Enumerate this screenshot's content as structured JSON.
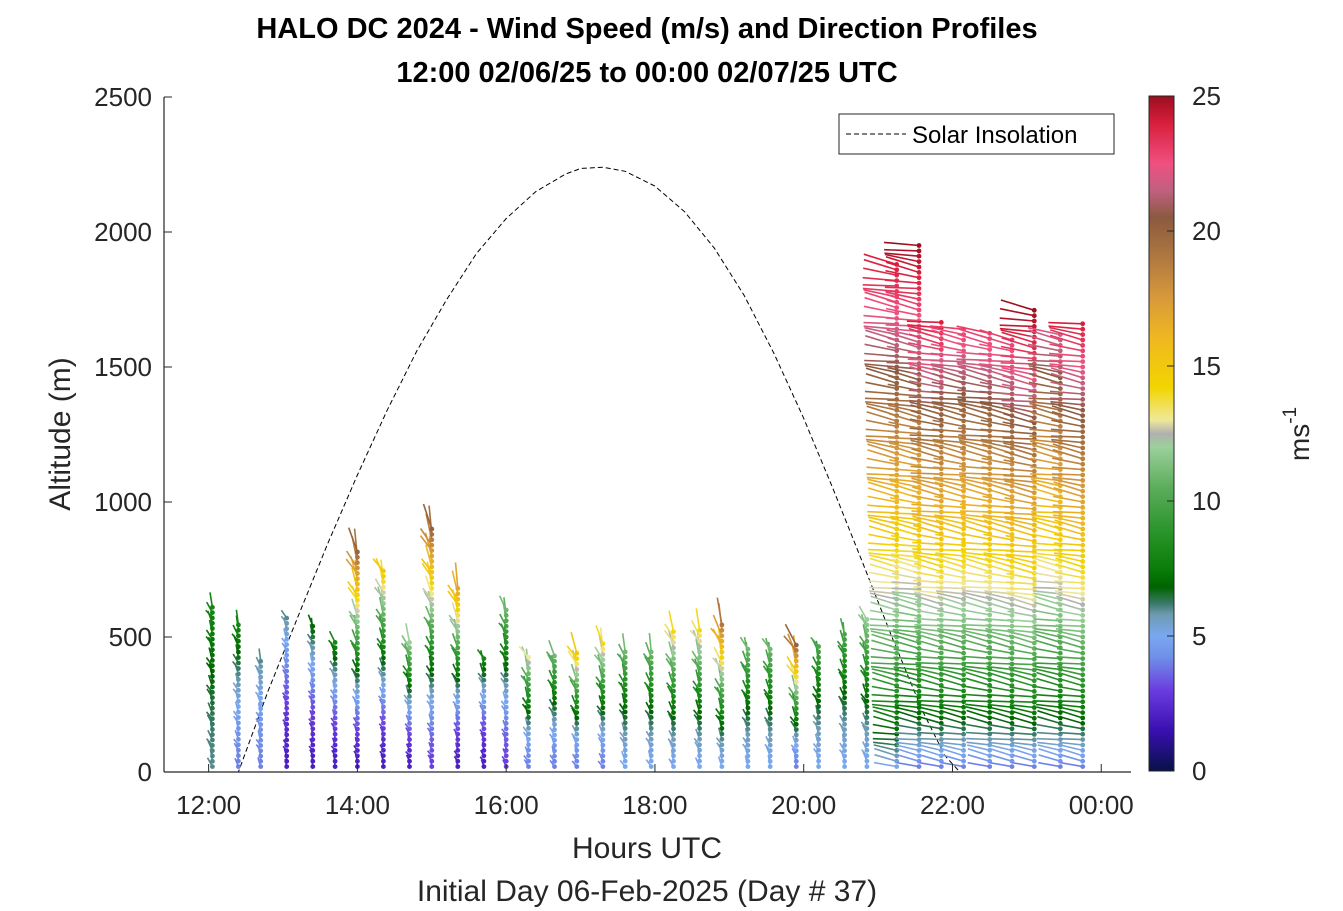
{
  "chart_data": {
    "type": "wind barb profile (time-altitude)",
    "title_line1": "HALO DC 2024 - Wind Speed (m/s) and Direction Profiles",
    "title_line2": "12:00 02/06/25 to 00:00 02/07/25  UTC",
    "xlabel": "Hours UTC",
    "xlabel2": "Initial Day 06-Feb-2025 (Day # 37)",
    "ylabel": "Altitude (m)",
    "xlim_hours": [
      11.4,
      24.4
    ],
    "ylim": [
      0,
      2500
    ],
    "xticks": [
      12,
      14,
      16,
      18,
      20,
      22,
      24
    ],
    "xtick_labels": [
      "12:00",
      "14:00",
      "16:00",
      "18:00",
      "20:00",
      "22:00",
      "00:00"
    ],
    "yticks": [
      0,
      500,
      1000,
      1500,
      2000,
      2500
    ],
    "ytick_labels": [
      "0",
      "500",
      "1000",
      "1500",
      "2000",
      "2500"
    ],
    "colorbar": {
      "label_base": "ms",
      "label_exp": "-1",
      "range": [
        0,
        25
      ],
      "ticks": [
        0,
        5,
        10,
        15,
        20,
        25
      ],
      "tick_labels": [
        "0",
        "5",
        "10",
        "15",
        "20",
        "25"
      ],
      "colormap": [
        [
          0,
          "#081048"
        ],
        [
          1.5,
          "#3a0fb0"
        ],
        [
          3,
          "#6a3de0"
        ],
        [
          4.2,
          "#6f8fe8"
        ],
        [
          5,
          "#7aa8f0"
        ],
        [
          5.8,
          "#6e9ab0"
        ],
        [
          6.2,
          "#3a7a6a"
        ],
        [
          6.8,
          "#006400"
        ],
        [
          7.5,
          "#0a7d0a"
        ],
        [
          9,
          "#2e962e"
        ],
        [
          10.5,
          "#5cad5c"
        ],
        [
          12,
          "#9bd09b"
        ],
        [
          12.5,
          "#b0b0b0"
        ],
        [
          13,
          "#f0e89a"
        ],
        [
          14.2,
          "#f2d500"
        ],
        [
          16,
          "#f0b820"
        ],
        [
          17.5,
          "#d89a3a"
        ],
        [
          19,
          "#b07840"
        ],
        [
          20.5,
          "#8a5a40"
        ],
        [
          21.5,
          "#c06080"
        ],
        [
          22.5,
          "#f05080"
        ],
        [
          24,
          "#d81e3c"
        ],
        [
          25,
          "#9c0e1e"
        ]
      ]
    },
    "legend": {
      "label": "Solar Insolation",
      "placement": "top-right"
    },
    "solar_insolation": {
      "x_hours": [
        11.4,
        12.2,
        12.4,
        12.8,
        13.2,
        13.6,
        14.0,
        14.4,
        14.8,
        15.2,
        15.6,
        16.0,
        16.4,
        16.8,
        17.0,
        17.3,
        17.6,
        18.0,
        18.4,
        18.8,
        19.2,
        19.6,
        20.0,
        20.4,
        20.8,
        21.2,
        21.6,
        21.9,
        22.1,
        22.3,
        24.4
      ],
      "y_m": [
        0,
        0,
        0,
        300,
        575,
        845,
        1100,
        1340,
        1560,
        1750,
        1920,
        2050,
        2150,
        2215,
        2235,
        2240,
        2225,
        2170,
        2075,
        1940,
        1765,
        1550,
        1310,
        1045,
        770,
        490,
        225,
        60,
        0,
        0,
        0
      ]
    },
    "profiles": [
      {
        "t": 12.05,
        "top": 610,
        "lo": 6,
        "hi": 8,
        "dir": 310,
        "kind": "low"
      },
      {
        "t": 12.4,
        "top": 545,
        "lo": 4,
        "hi": 8,
        "dir": 300,
        "kind": "low"
      },
      {
        "t": 12.7,
        "top": 410,
        "lo": 4,
        "hi": 6,
        "dir": 300,
        "kind": "low"
      },
      {
        "t": 13.05,
        "top": 570,
        "lo": 2,
        "hi": 6,
        "dir": 290,
        "kind": "low"
      },
      {
        "t": 13.4,
        "top": 540,
        "lo": 2,
        "hi": 7,
        "dir": 300,
        "kind": "low"
      },
      {
        "t": 13.7,
        "top": 480,
        "lo": 2,
        "hi": 8,
        "dir": 300,
        "kind": "low"
      },
      {
        "t": 14.0,
        "top": 815,
        "lo": 2,
        "hi": 20,
        "dir": 300,
        "kind": "low"
      },
      {
        "t": 14.35,
        "top": 745,
        "lo": 2,
        "hi": 15,
        "dir": 300,
        "kind": "low"
      },
      {
        "t": 14.7,
        "top": 480,
        "lo": 2,
        "hi": 12,
        "dir": 300,
        "kind": "low"
      },
      {
        "t": 15.0,
        "top": 900,
        "lo": 3,
        "hi": 20,
        "dir": 300,
        "kind": "low"
      },
      {
        "t": 15.35,
        "top": 680,
        "lo": 2,
        "hi": 17,
        "dir": 300,
        "kind": "low"
      },
      {
        "t": 15.7,
        "top": 420,
        "lo": 2,
        "hi": 8,
        "dir": 300,
        "kind": "low"
      },
      {
        "t": 16.0,
        "top": 600,
        "lo": 3,
        "hi": 11,
        "dir": 290,
        "kind": "low"
      },
      {
        "t": 16.3,
        "top": 425,
        "lo": 4,
        "hi": 13,
        "dir": 290,
        "kind": "low"
      },
      {
        "t": 16.65,
        "top": 430,
        "lo": 4,
        "hi": 11,
        "dir": 290,
        "kind": "low"
      },
      {
        "t": 16.95,
        "top": 440,
        "lo": 4,
        "hi": 15,
        "dir": 290,
        "kind": "low"
      },
      {
        "t": 17.3,
        "top": 475,
        "lo": 4,
        "hi": 14,
        "dir": 290,
        "kind": "low"
      },
      {
        "t": 17.6,
        "top": 445,
        "lo": 5,
        "hi": 11,
        "dir": 290,
        "kind": "low"
      },
      {
        "t": 17.95,
        "top": 445,
        "lo": 5,
        "hi": 11,
        "dir": 290,
        "kind": "low"
      },
      {
        "t": 18.25,
        "top": 520,
        "lo": 5,
        "hi": 14,
        "dir": 290,
        "kind": "low"
      },
      {
        "t": 18.6,
        "top": 525,
        "lo": 5,
        "hi": 14,
        "dir": 290,
        "kind": "low"
      },
      {
        "t": 18.9,
        "top": 545,
        "lo": 5,
        "hi": 19,
        "dir": 290,
        "kind": "low"
      },
      {
        "t": 19.25,
        "top": 455,
        "lo": 5,
        "hi": 11,
        "dir": 290,
        "kind": "low"
      },
      {
        "t": 19.55,
        "top": 455,
        "lo": 5,
        "hi": 11,
        "dir": 290,
        "kind": "low"
      },
      {
        "t": 19.9,
        "top": 470,
        "lo": 4,
        "hi": 20,
        "dir": 290,
        "kind": "low"
      },
      {
        "t": 20.2,
        "top": 465,
        "lo": 5,
        "hi": 10,
        "dir": 290,
        "kind": "low"
      },
      {
        "t": 20.55,
        "top": 510,
        "lo": 5,
        "hi": 10,
        "dir": 290,
        "kind": "low"
      },
      {
        "t": 20.85,
        "top": 565,
        "lo": 5,
        "hi": 12,
        "dir": 290,
        "kind": "low"
      },
      {
        "t": 21.25,
        "top": 1880,
        "lo": 5,
        "hi": 24,
        "dir": 285,
        "kind": "deep"
      },
      {
        "t": 21.55,
        "top": 1950,
        "lo": 4,
        "hi": 25,
        "dir": 285,
        "kind": "deep"
      },
      {
        "t": 21.85,
        "top": 1665,
        "lo": 4,
        "hi": 24,
        "dir": 285,
        "kind": "deep"
      },
      {
        "t": 22.15,
        "top": 1640,
        "lo": 4,
        "hi": 23,
        "dir": 285,
        "kind": "deep"
      },
      {
        "t": 22.5,
        "top": 1625,
        "lo": 4,
        "hi": 23,
        "dir": 285,
        "kind": "deep"
      },
      {
        "t": 22.8,
        "top": 1600,
        "lo": 4,
        "hi": 23,
        "dir": 285,
        "kind": "deep"
      },
      {
        "t": 23.1,
        "top": 1710,
        "lo": 4,
        "hi": 25,
        "dir": 285,
        "kind": "deep"
      },
      {
        "t": 23.45,
        "top": 1620,
        "lo": 4,
        "hi": 22,
        "dir": 285,
        "kind": "deep"
      },
      {
        "t": 23.75,
        "top": 1660,
        "lo": 4,
        "hi": 24,
        "dir": 285,
        "kind": "deep"
      }
    ]
  }
}
